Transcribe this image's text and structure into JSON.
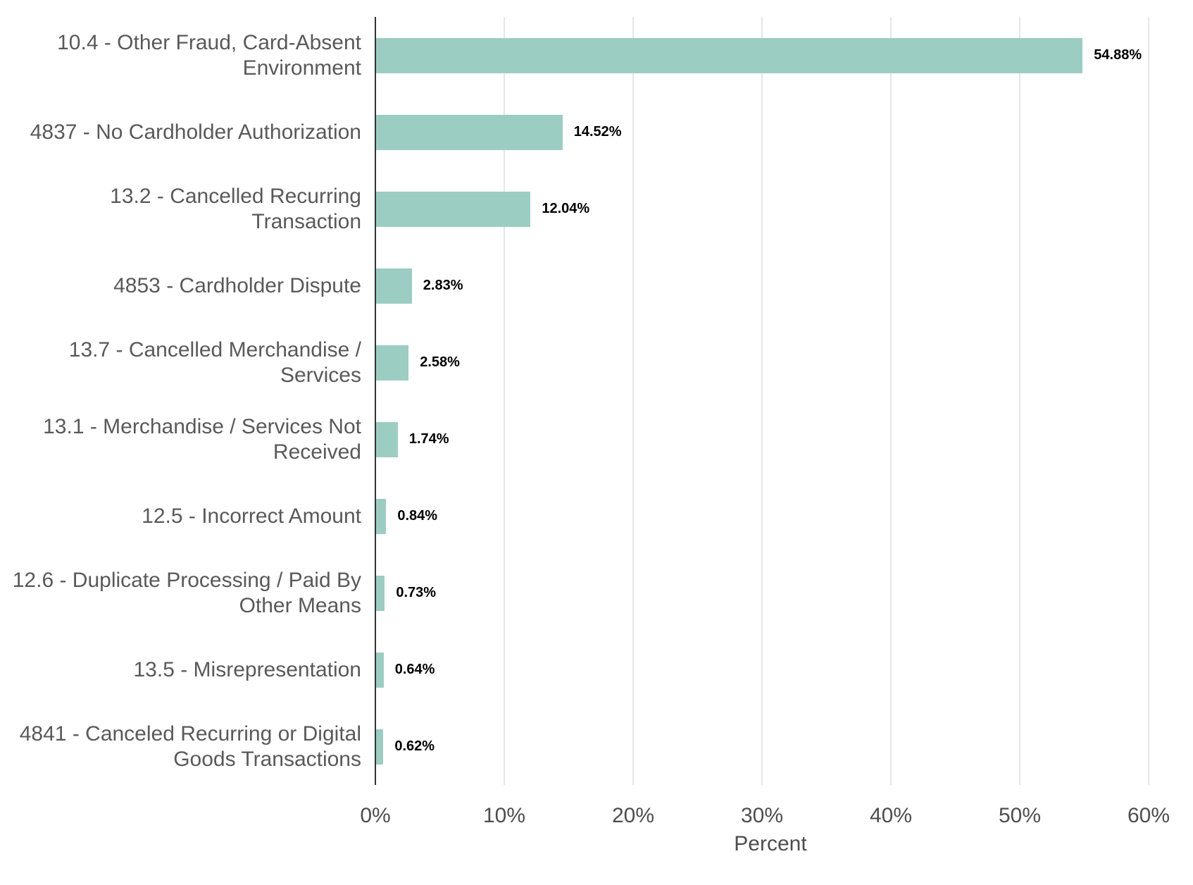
{
  "chart_data": {
    "type": "bar",
    "orientation": "horizontal",
    "title": "",
    "xlabel": "Percent",
    "ylabel": "",
    "categories": [
      "10.4 - Other Fraud, Card-Absent\nEnvironment",
      "4837 - No Cardholder Authorization",
      "13.2 - Cancelled Recurring Transaction",
      "4853 - Cardholder Dispute",
      "13.7 - Cancelled Merchandise / Services",
      "13.1 - Merchandise / Services Not\nReceived",
      "12.5 - Incorrect Amount",
      "12.6 - Duplicate Processing / Paid By\nOther Means",
      "13.5 - Misrepresentation",
      "4841 - Canceled Recurring or Digital\nGoods Transactions"
    ],
    "values": [
      54.88,
      14.52,
      12.04,
      2.83,
      2.58,
      1.74,
      0.84,
      0.73,
      0.64,
      0.62
    ],
    "value_labels": [
      "54.88%",
      "14.52%",
      "12.04%",
      "2.83%",
      "2.58%",
      "1.74%",
      "0.84%",
      "0.73%",
      "0.64%",
      "0.62%"
    ],
    "x_ticks": [
      "0%",
      "10%",
      "20%",
      "30%",
      "40%",
      "50%",
      "60%"
    ],
    "x_tick_values": [
      0,
      10,
      20,
      30,
      40,
      50,
      60
    ],
    "xlim": [
      0,
      61.3
    ],
    "grid": "vertical major gridlines only",
    "legend": "none",
    "bar_color": "#9bcdc2",
    "axis_line_color": "#333333",
    "gridline_color": "#e6e6e6",
    "label_color": "#595959",
    "tick_label_color": "#4d4d4d",
    "value_label_color": "#000000"
  }
}
